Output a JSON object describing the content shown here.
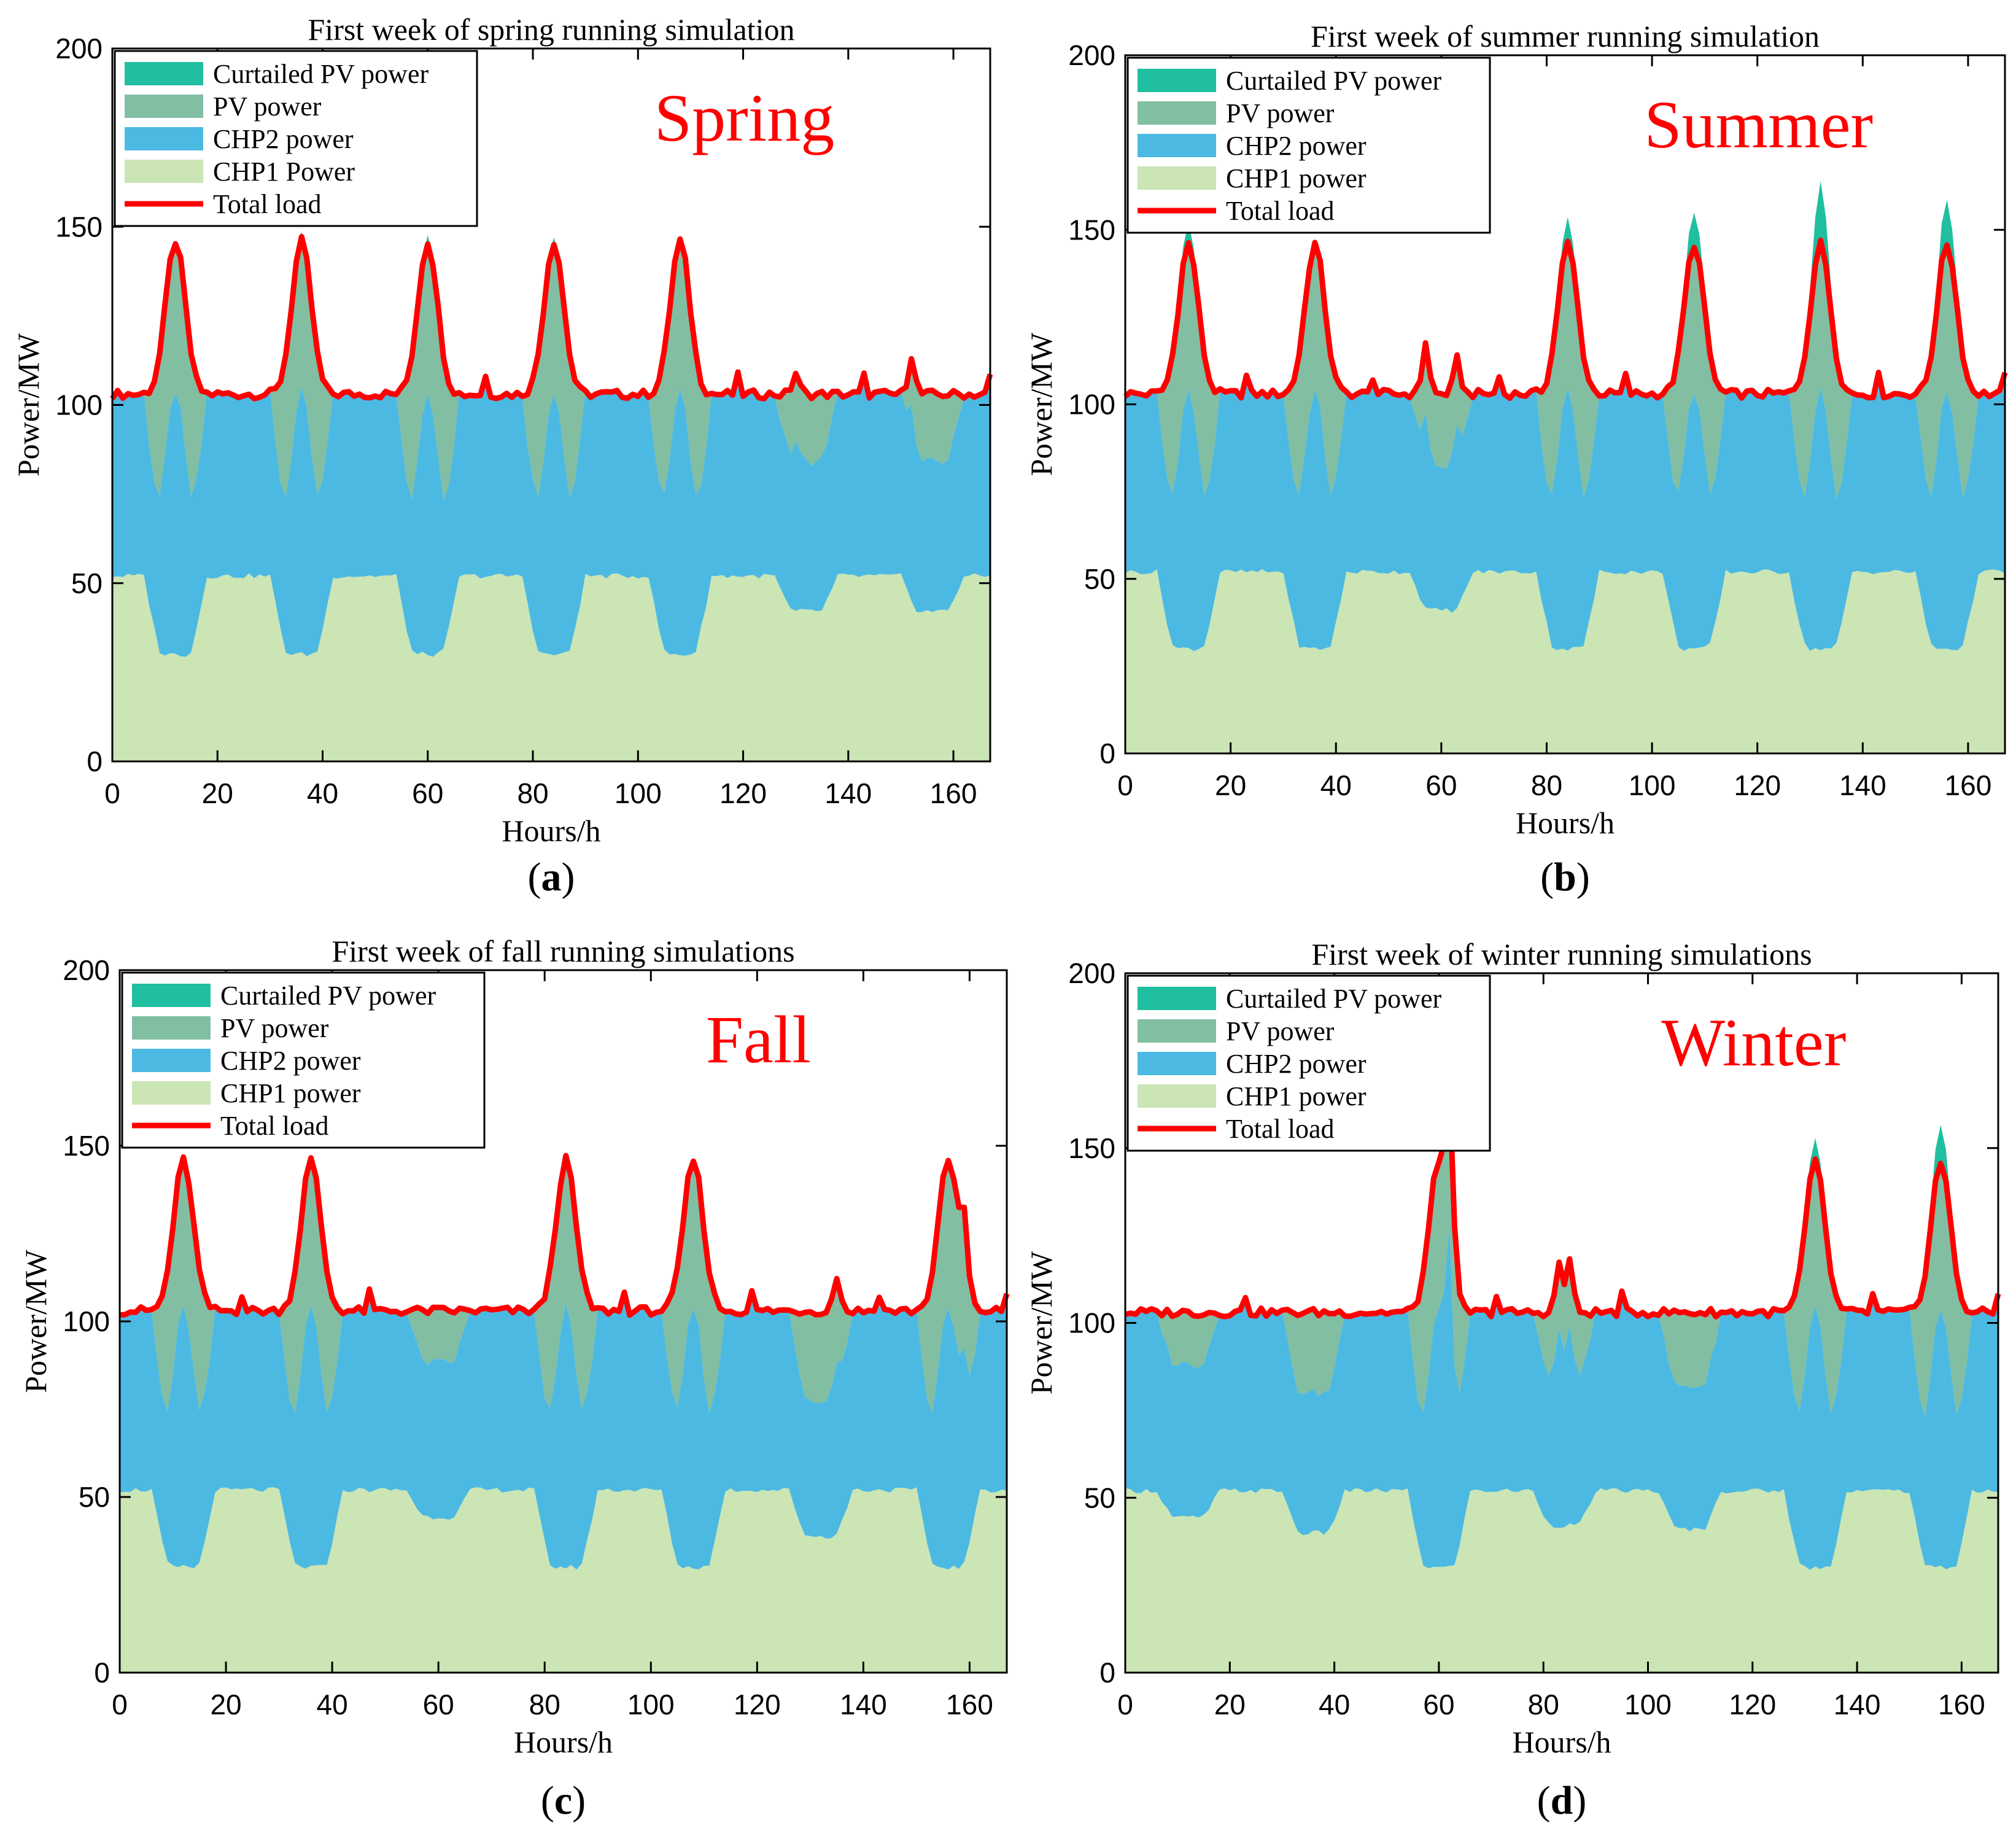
{
  "figure": {
    "name": "seasonal-running-simulation-figure"
  },
  "colors": {
    "curtailed": "#1fbf9f",
    "pv": "#82bea2",
    "chp2": "#4cb9e2",
    "chp1": "#cbe5b5",
    "load": "#ff0000",
    "season": "#ff0000",
    "axis": "#000000"
  },
  "chart_data": [
    {
      "type": "area",
      "panel_label": "a",
      "title": "First week of spring running simulation",
      "season_label": "Spring",
      "xlabel": "Hours/h",
      "ylabel": "Power/MW",
      "xlim": [
        0,
        167
      ],
      "ylim": [
        0,
        200
      ],
      "xticks": [
        0,
        20,
        40,
        60,
        80,
        100,
        120,
        140,
        160
      ],
      "yticks": [
        0,
        50,
        100,
        150,
        200
      ],
      "legend": [
        "Curtailed PV power",
        "PV power",
        "CHP2 power",
        "CHP1 Power",
        "Total load"
      ],
      "legend_position": "top-left",
      "pv_days": [
        1,
        1,
        1,
        1,
        1,
        0.45,
        0.45
      ],
      "curtail_days": [
        0,
        1.5,
        2.5,
        2,
        0,
        0,
        0
      ],
      "load_spikes": [
        [
          130,
          6
        ],
        [
          152,
          11
        ]
      ]
    },
    {
      "type": "area",
      "panel_label": "b",
      "title": "First week of summer running simulation",
      "season_label": "Summer",
      "xlabel": "Hours/h",
      "ylabel": "Power/MW",
      "xlim": [
        0,
        167
      ],
      "ylim": [
        0,
        200
      ],
      "xticks": [
        0,
        20,
        40,
        60,
        80,
        100,
        120,
        140,
        160
      ],
      "yticks": [
        0,
        50,
        100,
        150,
        200
      ],
      "legend": [
        "Curtailed PV power",
        "PV power",
        "CHP2 power",
        "CHP1 power",
        "Total load"
      ],
      "legend_position": "top-left",
      "pv_days": [
        1,
        1,
        0.5,
        1,
        1,
        1,
        1
      ],
      "curtail_days": [
        6,
        0,
        0,
        7,
        10,
        17,
        13
      ],
      "load_spikes": [
        [
          57,
          15
        ],
        [
          63,
          10
        ]
      ]
    },
    {
      "type": "area",
      "panel_label": "c",
      "title": "First week of fall running simulations",
      "season_label": "Fall",
      "xlabel": "Hours/h",
      "ylabel": "Power/MW",
      "xlim": [
        0,
        167
      ],
      "ylim": [
        0,
        200
      ],
      "xticks": [
        0,
        20,
        40,
        60,
        80,
        100,
        120,
        140,
        160
      ],
      "yticks": [
        0,
        50,
        100,
        150,
        200
      ],
      "legend": [
        "Curtailed PV power",
        "PV power",
        "CHP2 power",
        "CHP1 power",
        "Total load"
      ],
      "legend_position": "top-left",
      "pv_days": [
        1,
        1,
        0.35,
        1,
        1,
        0.6,
        1
      ],
      "curtail_days": [
        0,
        0,
        0,
        0,
        0,
        0,
        0
      ],
      "load_spikes": [
        [
          135,
          10
        ],
        [
          159,
          18
        ]
      ]
    },
    {
      "type": "area",
      "panel_label": "d",
      "title": "First week of winter running simulations",
      "season_label": "Winter",
      "xlabel": "Hours/h",
      "ylabel": "Power/MW",
      "xlim": [
        0,
        167
      ],
      "ylim": [
        0,
        200
      ],
      "xticks": [
        0,
        20,
        40,
        60,
        80,
        100,
        120,
        140,
        160
      ],
      "yticks": [
        0,
        50,
        100,
        150,
        200
      ],
      "legend": [
        "Curtailed PV power",
        "PV power",
        "CHP2 power",
        "CHP1 power",
        "Total load"
      ],
      "legend_position": "top-left",
      "pv_days": [
        0.35,
        0.55,
        1,
        0.45,
        0.5,
        1,
        1
      ],
      "curtail_days": [
        0,
        0,
        0,
        0,
        0,
        6,
        11
      ],
      "load_spikes": [
        [
          62,
          42
        ],
        [
          83,
          14
        ],
        [
          85,
          15
        ]
      ]
    }
  ]
}
